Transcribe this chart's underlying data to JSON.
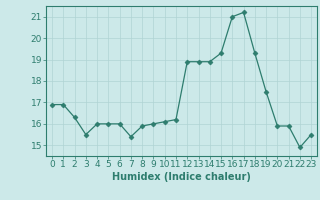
{
  "x": [
    0,
    1,
    2,
    3,
    4,
    5,
    6,
    7,
    8,
    9,
    10,
    11,
    12,
    13,
    14,
    15,
    16,
    17,
    18,
    19,
    20,
    21,
    22,
    23
  ],
  "y": [
    16.9,
    16.9,
    16.3,
    15.5,
    16.0,
    16.0,
    16.0,
    15.4,
    15.9,
    16.0,
    16.1,
    16.2,
    18.9,
    18.9,
    18.9,
    19.3,
    21.0,
    21.2,
    19.3,
    17.5,
    15.9,
    15.9,
    14.9,
    15.5
  ],
  "xlabel": "Humidex (Indice chaleur)",
  "xlim": [
    -0.5,
    23.5
  ],
  "ylim": [
    14.5,
    21.5
  ],
  "yticks": [
    15,
    16,
    17,
    18,
    19,
    20,
    21
  ],
  "xticks": [
    0,
    1,
    2,
    3,
    4,
    5,
    6,
    7,
    8,
    9,
    10,
    11,
    12,
    13,
    14,
    15,
    16,
    17,
    18,
    19,
    20,
    21,
    22,
    23
  ],
  "line_color": "#2e7d6e",
  "marker": "D",
  "marker_size": 2.5,
  "bg_color": "#cce9e9",
  "grid_color": "#b0d4d4",
  "axis_color": "#2e7d6e",
  "tick_color": "#2e7d6e",
  "label_color": "#2e7d6e",
  "xlabel_fontsize": 7,
  "tick_fontsize": 6.5
}
